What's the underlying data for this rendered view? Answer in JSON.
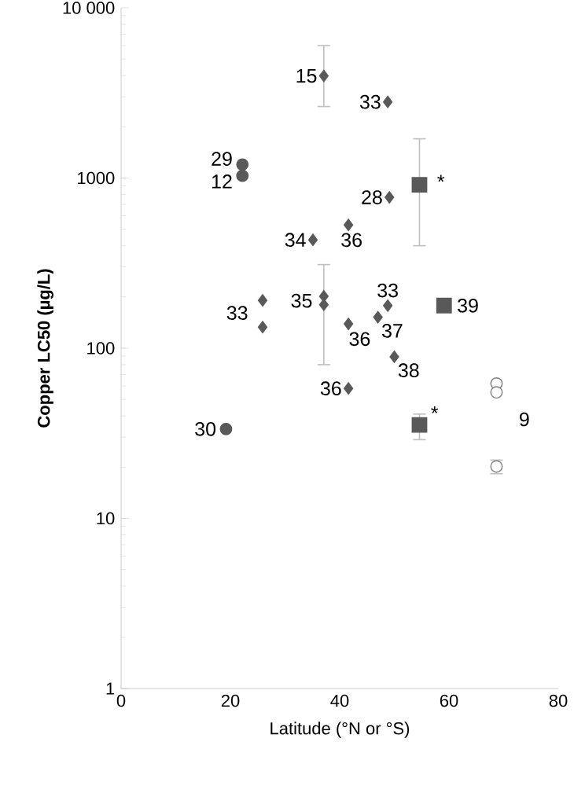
{
  "chart_data": {
    "type": "scatter",
    "xlabel": "Latitude (°N or °S)",
    "ylabel": "Copper LC50 (µg/L)",
    "log": "y",
    "xlim": [
      0,
      80
    ],
    "xticks": [
      0,
      20,
      40,
      60,
      80
    ],
    "ylim": [
      1,
      10000
    ],
    "yticks": [
      1,
      10,
      100,
      1000,
      {
        "value": 10000,
        "label": "10 000"
      }
    ],
    "series": [
      {
        "marker": "diamond",
        "color": "#595959",
        "x": [
          37.1,
          48.8,
          49.1,
          41.6,
          35.1,
          25.9,
          25.9,
          37.1,
          37.1,
          41.6,
          48.8,
          47.0,
          50.0,
          41.6
        ],
        "values": [
          3980,
          2800,
          770,
          530,
          433,
          191,
          133,
          202,
          180,
          139,
          178,
          152,
          89,
          58
        ],
        "errors": [
          [
            2630,
            6000
          ],
          null,
          null,
          null,
          null,
          null,
          null,
          null,
          [
            80,
            310
          ],
          null,
          null,
          null,
          null,
          null
        ]
      },
      {
        "marker": "circle",
        "color": "#595959",
        "x": [
          22.2,
          22.2,
          19.2
        ],
        "values": [
          1200,
          1030,
          33.5
        ]
      },
      {
        "marker": "square",
        "color": "#595959",
        "x": [
          54.6,
          59.1,
          54.6
        ],
        "values": [
          912,
          178,
          35.4
        ],
        "errors": [
          [
            400,
            1700
          ],
          null,
          [
            29,
            41
          ]
        ]
      },
      {
        "marker": "circle",
        "color": "#ffffff",
        "x": [
          68.7,
          68.7,
          68.7
        ],
        "values": [
          62,
          55,
          20.2
        ],
        "errors": [
          null,
          null,
          [
            18.3,
            22
          ]
        ]
      }
    ],
    "annotations": [
      {
        "text": "15",
        "x": 37.1,
        "y": 3980
      },
      {
        "text": "33",
        "x": 48.8,
        "y": 2800
      },
      {
        "text": "29",
        "x": 22.2,
        "y": 1200
      },
      {
        "text": "12",
        "x": 22.2,
        "y": 1030
      },
      {
        "text": "28",
        "x": 49.1,
        "y": 770
      },
      {
        "text": "34",
        "x": 35.1,
        "y": 433
      },
      {
        "text": "36",
        "x": 41.6,
        "y": 530
      },
      {
        "text": "33",
        "x": 25.9,
        "y": 191
      },
      {
        "text": "35",
        "x": 37.1,
        "y": 190
      },
      {
        "text": "33",
        "x": 48.8,
        "y": 178
      },
      {
        "text": "37",
        "x": 47.0,
        "y": 152
      },
      {
        "text": "36",
        "x": 41.6,
        "y": 139
      },
      {
        "text": "38",
        "x": 50.0,
        "y": 89
      },
      {
        "text": "36",
        "x": 41.6,
        "y": 58
      },
      {
        "text": "30",
        "x": 19.2,
        "y": 33.5
      },
      {
        "text": "*",
        "x": 54.6,
        "y": 912
      },
      {
        "text": "39",
        "x": 59.1,
        "y": 178
      },
      {
        "text": "*",
        "x": 54.6,
        "y": 35.4
      },
      {
        "text": "9",
        "x": 68.7,
        "y": 56
      }
    ]
  }
}
